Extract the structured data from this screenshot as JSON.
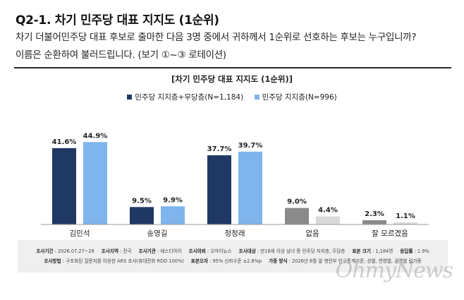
{
  "header": {
    "title": "Q2-1. 차기 민주당 대표 지지도 (1순위)",
    "question_line1": "차기 더불어민주당 대표 후보로 출마한 다음 3명 중에서 귀하께서 1순위로 선호하는 후보는 누구입니까?",
    "question_line2": "이름은 순환하여 불러드립니다. (보기 ①~③ 로테이션)"
  },
  "chart_data": {
    "type": "bar",
    "title": "[차기 민주당 대표 지지도 (1순위)]",
    "categories": [
      "김민석",
      "송영길",
      "정청래",
      "없음",
      "잘 모르겠음"
    ],
    "series": [
      {
        "name": "민주당 지지층+무당층(N=1,184)",
        "values": [
          41.6,
          9.5,
          37.7,
          9.0,
          2.3
        ],
        "labels": [
          "41.6%",
          "9.5%",
          "37.7%",
          "9.0%",
          "2.3%"
        ]
      },
      {
        "name": "민주당 지지층(N=996)",
        "values": [
          44.9,
          9.9,
          39.7,
          4.4,
          1.1
        ],
        "labels": [
          "44.9%",
          "9.9%",
          "39.7%",
          "4.4%",
          "1.1%"
        ]
      }
    ],
    "colors": {
      "candidate": [
        "#1f3864",
        "#7fb5ec"
      ],
      "other": [
        "#8a8a8a",
        "#d9d9d9"
      ]
    },
    "ylim": [
      0,
      50
    ],
    "grid": false,
    "legend": "top-center"
  },
  "footer": {
    "r1": [
      {
        "k": "조사기간",
        "v": "2026.07.27~28"
      },
      {
        "k": "조사지역",
        "v": "전국"
      },
      {
        "k": "조사기관",
        "v": "에스티아이"
      },
      {
        "k": "조사의뢰",
        "v": "오마이뉴스"
      },
      {
        "k": "조사대상",
        "v": "만18세 이상 남녀 중 민주당 지지층, 무당층"
      },
      {
        "k": "표본 크기",
        "v": "1,184명"
      },
      {
        "k": "응답률",
        "v": "1.9%"
      }
    ],
    "r2": [
      {
        "k": "조사방법",
        "v": "구조화된 질문지를 이용한 ARS 조사(휴대전화 RDD 100%)"
      },
      {
        "k": "표본오차",
        "v": "95% 신뢰수준 ±2.8%p"
      },
      {
        "k": "가중 방식",
        "v": "2026년 6월 말 행안부 인구통계기준, 성별, 연령별, 권역별 림가중"
      }
    ]
  },
  "watermark": "OhmyNews"
}
